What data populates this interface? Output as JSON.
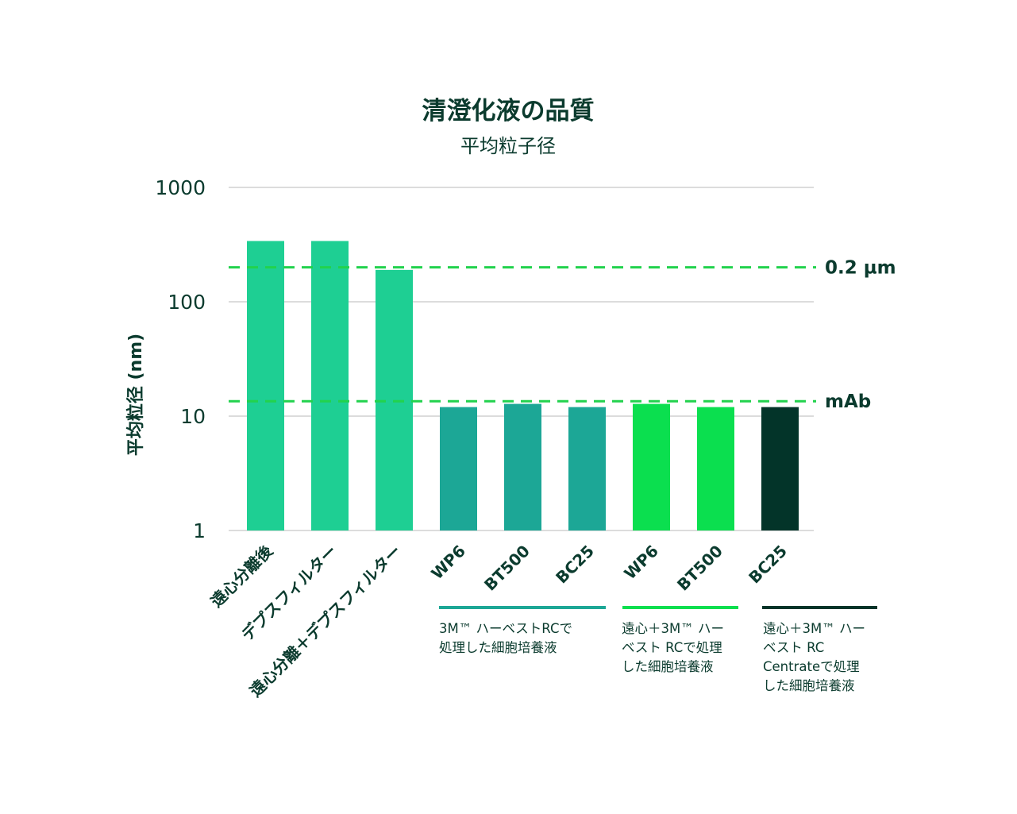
{
  "chart_data": {
    "type": "bar",
    "title": "清澄化液の品質",
    "subtitle": "平均粒子径",
    "ylabel": "平均粒径 (nm)",
    "yscale": "log",
    "ylim": [
      1,
      1000
    ],
    "yticks": [
      "1",
      "10",
      "100",
      "1000"
    ],
    "grid": true,
    "categories": [
      "遠心分離後",
      "デプスフィルター",
      "遠心分離＋デプスフィルター",
      "WP6",
      "BT500",
      "BC25",
      "WP6",
      "BT500",
      "BC25"
    ],
    "values": [
      340,
      340,
      190,
      12,
      12.8,
      12,
      12.8,
      12,
      12
    ],
    "colors": [
      "#1ecf93",
      "#1ecf93",
      "#1ecf93",
      "#1ca796",
      "#1ca796",
      "#1ca796",
      "#0bdf4f",
      "#0bdf4f",
      "#033429"
    ],
    "reference_lines": [
      {
        "label": "0.2 µm",
        "value": 200,
        "color": "#22d24d"
      },
      {
        "label": "mAb",
        "value": 13.5,
        "color": "#22d24d"
      }
    ],
    "groups": [
      {
        "label": "3M™ ハーベストRCで\n処理した細胞培養液",
        "color": "#1ca796"
      },
      {
        "label": "遠心＋3M™ ハー\nベスト RCで処理\nした細胞培養液",
        "color": "#0bdf4f"
      },
      {
        "label": "遠心＋3M™ ハー\nベスト RC\nCentrateで処理\nした細胞培養液",
        "color": "#033429"
      }
    ]
  }
}
